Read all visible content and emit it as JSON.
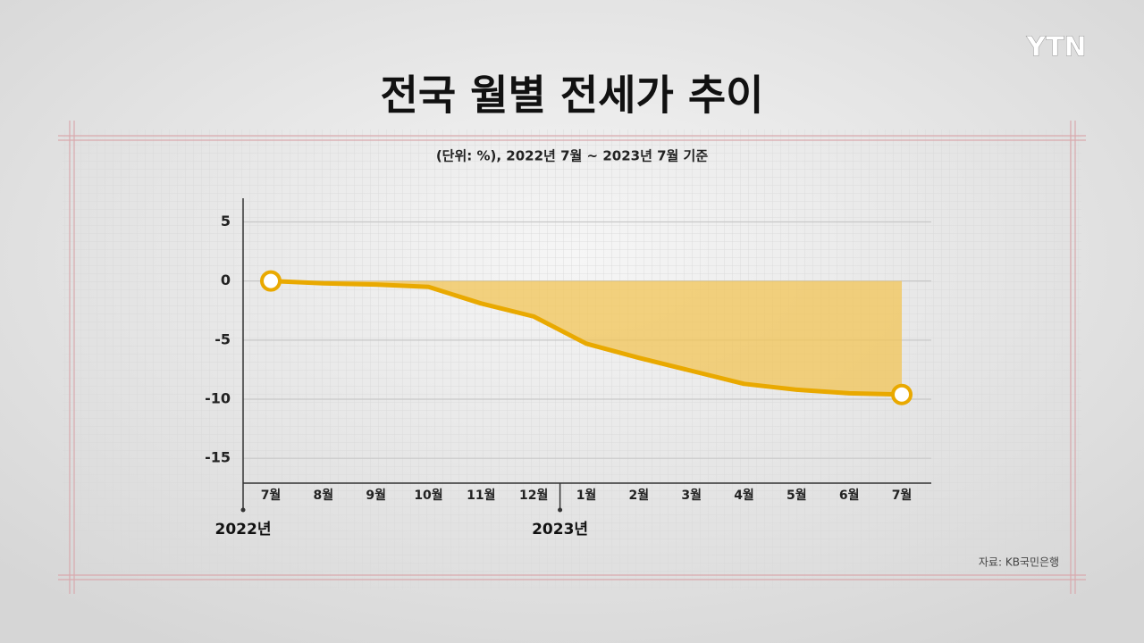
{
  "logo": "YTN",
  "chart_data": {
    "type": "area-line",
    "title": "전국 월별 전세가 추이",
    "subtitle": "(단위: %), 2022년 7월 ~ 2023년 7월 기준",
    "categories": [
      "7월",
      "8월",
      "9월",
      "10월",
      "11월",
      "12월",
      "1월",
      "2월",
      "3월",
      "4월",
      "5월",
      "6월",
      "7월"
    ],
    "year_labels": [
      "2022년",
      "2023년"
    ],
    "values": [
      0,
      -0.2,
      -0.3,
      -0.5,
      -1.9,
      -3.0,
      -5.3,
      -6.5,
      -7.6,
      -8.7,
      -9.2,
      -9.5,
      -9.6
    ],
    "color": "#e9a900",
    "fill": "#f1c455",
    "ylim": [
      -17.1,
      7
    ],
    "yticks": [
      5,
      0,
      -5,
      -10,
      -15
    ],
    "grid": true,
    "source": "자료: KB국민은행"
  }
}
